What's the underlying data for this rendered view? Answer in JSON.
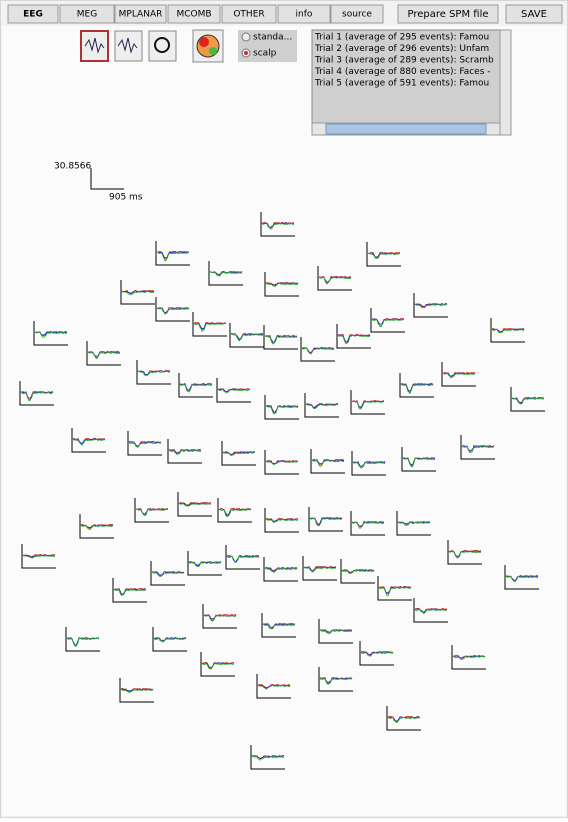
{
  "tabs": [
    "EEG",
    "MEG",
    "MPLANAR",
    "MCOMB",
    "OTHER",
    "info",
    "source"
  ],
  "buttons": {
    "prepare": "Prepare SPM file",
    "save": "SAVE"
  },
  "radio": [
    "standa...",
    "scalp"
  ],
  "trials": [
    "Trial 1 (average of 295 events): Famou",
    "Trial 2 (average of 296 events): Unfam",
    "Trial 3 (average of 289 events): Scramb",
    "Trial 4 (average of 880 events): Faces -",
    "Trial 5 (average of 591 events): Famou"
  ],
  "scale": {
    "amplitude": "30.8566",
    "time": "905 ms"
  }
}
